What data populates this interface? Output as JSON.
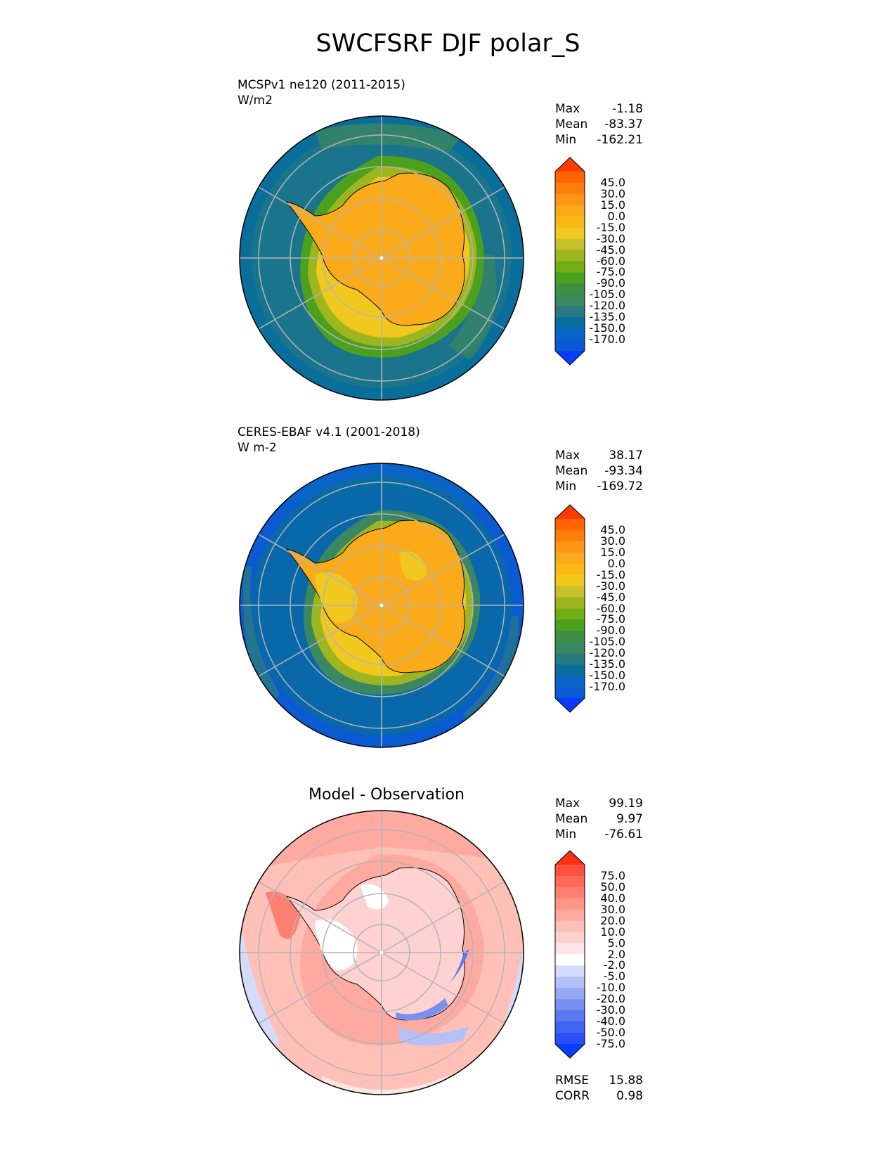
{
  "figure_title": "SWCFSRF DJF polar_S",
  "panels": [
    {
      "id": "test",
      "line1": "MCSPv1 ne120 (2011-2015)",
      "line2": "W/m2",
      "stats": [
        [
          "Max",
          "-1.18"
        ],
        [
          "Mean",
          "-83.37"
        ],
        [
          "Min",
          "-162.21"
        ]
      ],
      "colorbar": {
        "ticks": [
          "45.0",
          "30.0",
          "15.0",
          "0.0",
          "-15.0",
          "-30.0",
          "-45.0",
          "-60.0",
          "-75.0",
          "-90.0",
          "-105.0",
          "-120.0",
          "-135.0",
          "-150.0",
          "-170.0"
        ],
        "colors": [
          "#0a3cff",
          "#0a5ad2",
          "#0a64c8",
          "#0a6e9b",
          "#287a80",
          "#3a8761",
          "#3e8f46",
          "#4da01e",
          "#70ae14",
          "#9db51e",
          "#c8c02a",
          "#f0c81e",
          "#fab914",
          "#fbaa19",
          "#ff9616",
          "#ff7d0a",
          "#ff6400",
          "#ff3c00"
        ]
      }
    },
    {
      "id": "reference",
      "line1": "CERES-EBAF v4.1 (2001-2018)",
      "line2": "W m-2",
      "stats": [
        [
          "Max",
          "38.17"
        ],
        [
          "Mean",
          "-93.34"
        ],
        [
          "Min",
          "-169.72"
        ]
      ],
      "colorbar": {
        "ticks": [
          "45.0",
          "30.0",
          "15.0",
          "0.0",
          "-15.0",
          "-30.0",
          "-45.0",
          "-60.0",
          "-75.0",
          "-90.0",
          "-105.0",
          "-120.0",
          "-135.0",
          "-150.0",
          "-170.0"
        ],
        "colors": [
          "#0a3cff",
          "#0a5ad2",
          "#0a64c8",
          "#0a6e9b",
          "#287a80",
          "#3a8761",
          "#3e8f46",
          "#4da01e",
          "#70ae14",
          "#9db51e",
          "#c8c02a",
          "#f0c81e",
          "#fab914",
          "#fbaa19",
          "#ff9616",
          "#ff7d0a",
          "#ff6400",
          "#ff3c00"
        ]
      }
    },
    {
      "id": "diff",
      "title": "Model - Observation",
      "stats": [
        [
          "Max",
          "99.19"
        ],
        [
          "Mean",
          "9.97"
        ],
        [
          "Min",
          "-76.61"
        ]
      ],
      "extra_stats": [
        [
          "RMSE",
          "15.88"
        ],
        [
          "CORR",
          "0.98"
        ]
      ],
      "colorbar": {
        "ticks": [
          "75.0",
          "50.0",
          "40.0",
          "30.0",
          "20.0",
          "10.0",
          "5.0",
          "2.0",
          "-2.0",
          "-5.0",
          "-10.0",
          "-20.0",
          "-30.0",
          "-40.0",
          "-50.0",
          "-75.0"
        ],
        "colors": [
          "#0a3cff",
          "#2850f5",
          "#4164f0",
          "#5a78f0",
          "#7890f0",
          "#96a8f5",
          "#b4c0f8",
          "#d2dcfa",
          "#ffffff",
          "#ffe6e6",
          "#ffd2d2",
          "#ffc0b8",
          "#ffaaa0",
          "#ff9688",
          "#ff8070",
          "#ff6a58",
          "#ff5040",
          "#ff3014"
        ]
      }
    }
  ],
  "chart_data": [
    {
      "type": "heatmap",
      "projection": "south polar stereographic",
      "title": "MCSPv1 ne120 (2011-2015)",
      "units": "W/m2",
      "max": -1.18,
      "mean": -83.37,
      "min": -162.21,
      "colorbar_levels": [
        -170,
        -150,
        -135,
        -120,
        -105,
        -90,
        -75,
        -60,
        -45,
        -30,
        -15,
        0,
        15,
        30,
        45
      ],
      "colorbar_extend": "both"
    },
    {
      "type": "heatmap",
      "projection": "south polar stereographic",
      "title": "CERES-EBAF v4.1 (2001-2018)",
      "units": "W m-2",
      "max": 38.17,
      "mean": -93.34,
      "min": -169.72,
      "colorbar_levels": [
        -170,
        -150,
        -135,
        -120,
        -105,
        -90,
        -75,
        -60,
        -45,
        -30,
        -15,
        0,
        15,
        30,
        45
      ],
      "colorbar_extend": "both"
    },
    {
      "type": "heatmap",
      "projection": "south polar stereographic",
      "title": "Model - Observation",
      "max": 99.19,
      "mean": 9.97,
      "min": -76.61,
      "rmse": 15.88,
      "corr": 0.98,
      "colorbar_levels": [
        -75,
        -50,
        -40,
        -30,
        -20,
        -10,
        -5,
        -2,
        2,
        5,
        10,
        20,
        30,
        40,
        50,
        75
      ],
      "colorbar_extend": "both"
    }
  ]
}
